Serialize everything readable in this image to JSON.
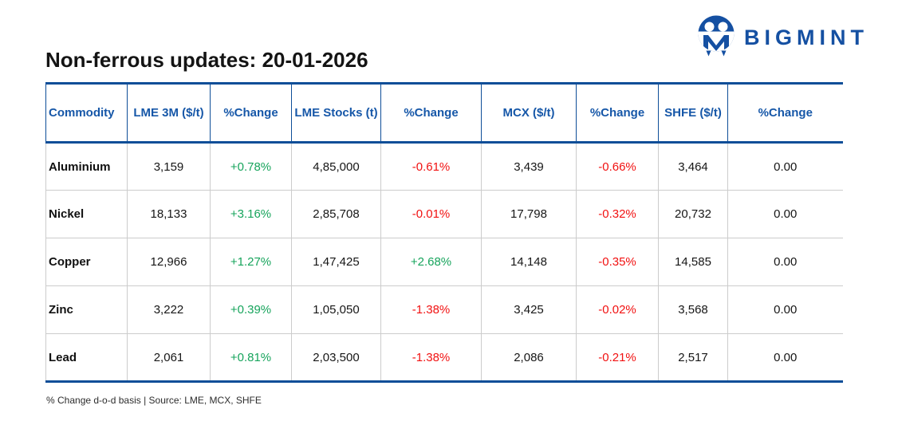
{
  "page": {
    "title": "Non-ferrous updates: 20-01-2026"
  },
  "brand": {
    "name": "BIGMINT"
  },
  "table": {
    "columns": [
      "Commodity",
      "LME 3M ($/t)",
      "%Change",
      "LME Stocks (t)",
      "%Change",
      "MCX ($/t)",
      "%Change",
      "SHFE ($/t)",
      "%Change"
    ],
    "rows": [
      [
        "Aluminium",
        "3,159",
        "+0.78%",
        "4,85,000",
        "-0.61%",
        "3,439",
        "-0.66%",
        "3,464",
        "0.00"
      ],
      [
        "Nickel",
        "18,133",
        "+3.16%",
        "2,85,708",
        "-0.01%",
        "17,798",
        "-0.32%",
        "20,732",
        "0.00"
      ],
      [
        "Copper",
        "12,966",
        "+1.27%",
        "1,47,425",
        "+2.68%",
        "14,148",
        "-0.35%",
        "14,585",
        "0.00"
      ],
      [
        "Zinc",
        "3,222",
        "+0.39%",
        "1,05,050",
        "-1.38%",
        "3,425",
        "-0.02%",
        "3,568",
        "0.00"
      ],
      [
        "Lead",
        "2,061",
        "+0.81%",
        "2,03,500",
        "-1.38%",
        "2,086",
        "-0.21%",
        "2,517",
        "0.00"
      ]
    ]
  },
  "footer": {
    "note": "% Change d-o-d basis | Source: LME, MCX, SHFE"
  },
  "colors": {
    "positive": "#17a45c",
    "negative": "#f11111",
    "header_text": "#1657a8",
    "border": "#0e4e98",
    "brand": "#1550a2",
    "divider": "#cccccc"
  },
  "chart_data": {
    "type": "table",
    "title": "Non-ferrous updates: 20-01-2026",
    "columns": [
      "Commodity",
      "LME 3M ($/t)",
      "%Change",
      "LME Stocks (t)",
      "%Change",
      "MCX ($/t)",
      "%Change",
      "SHFE ($/t)",
      "%Change"
    ],
    "rows": [
      [
        "Aluminium",
        3159,
        0.78,
        485000,
        -0.61,
        3439,
        -0.66,
        3464,
        0.0
      ],
      [
        "Nickel",
        18133,
        3.16,
        285708,
        -0.01,
        17798,
        -0.32,
        20732,
        0.0
      ],
      [
        "Copper",
        12966,
        1.27,
        147425,
        2.68,
        14148,
        -0.35,
        14585,
        0.0
      ],
      [
        "Zinc",
        3222,
        0.39,
        105050,
        -1.38,
        3425,
        -0.02,
        3568,
        0.0
      ],
      [
        "Lead",
        2061,
        0.81,
        203500,
        -1.38,
        2086,
        -0.21,
        2517,
        0.0
      ]
    ],
    "footnote": "% Change d-o-d basis | Source: LME, MCX, SHFE"
  }
}
